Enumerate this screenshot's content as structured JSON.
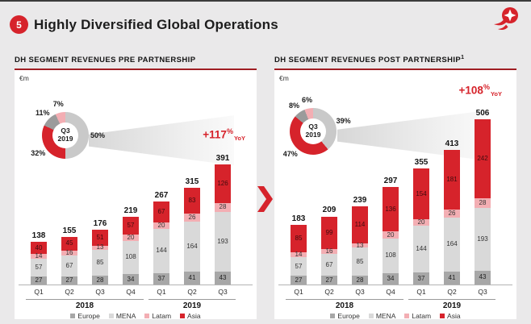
{
  "header": {
    "badge": "5",
    "title": "Highly Diversified Global Operations"
  },
  "colors": {
    "accent": "#d6232b",
    "europe": "#a7a7a7",
    "mena": "#d9d9d9",
    "latam": "#f3aeb3",
    "asia": "#d6232b",
    "donut_mena": "#c9c9c9",
    "donut_europe": "#9b9b9b"
  },
  "legend": [
    {
      "label": "Europe",
      "key": "europe"
    },
    {
      "label": "MENA",
      "key": "mena"
    },
    {
      "label": "Latam",
      "key": "latam"
    },
    {
      "label": "Asia",
      "key": "asia"
    }
  ],
  "chart_data": [
    {
      "type": "bar",
      "stacked": true,
      "title": "DH SEGMENT REVENUES PRE PARTNERSHIP",
      "title_sup": "",
      "unit": "€m",
      "yoy": {
        "value": "+117",
        "pct": "%",
        "suffix": "YoY"
      },
      "categories": [
        "Q1",
        "Q2",
        "Q3",
        "Q4",
        "Q1",
        "Q2",
        "Q3"
      ],
      "year_groups": [
        {
          "label": "2018",
          "cols": 4
        },
        {
          "label": "2019",
          "cols": 3
        }
      ],
      "series": [
        {
          "name": "Europe",
          "values": [
            27,
            27,
            28,
            34,
            37,
            41,
            43
          ]
        },
        {
          "name": "MENA",
          "values": [
            57,
            67,
            85,
            108,
            144,
            164,
            193
          ]
        },
        {
          "name": "Latam",
          "values": [
            14,
            16,
            13,
            20,
            20,
            26,
            28
          ]
        },
        {
          "name": "Asia",
          "values": [
            40,
            45,
            51,
            57,
            67,
            83,
            126
          ]
        }
      ],
      "totals": [
        138,
        155,
        176,
        219,
        267,
        315,
        391
      ],
      "ylim": [
        0,
        400
      ],
      "legend_position": "bottom",
      "donut": {
        "center": [
          "Q3",
          "2019"
        ],
        "slices": [
          {
            "series": "MENA",
            "pct": 50,
            "label": "50%"
          },
          {
            "series": "Asia",
            "pct": 32,
            "label": "32%"
          },
          {
            "series": "Europe",
            "pct": 11,
            "label": "11%"
          },
          {
            "series": "Latam",
            "pct": 7,
            "label": "7%"
          }
        ]
      }
    },
    {
      "type": "bar",
      "stacked": true,
      "title": "DH SEGMENT REVENUES POST PARTNERSHIP",
      "title_sup": "1",
      "unit": "€m",
      "yoy": {
        "value": "+108",
        "pct": "%",
        "suffix": "YoY"
      },
      "categories": [
        "Q1",
        "Q2",
        "Q3",
        "Q4",
        "Q1",
        "Q2",
        "Q3"
      ],
      "year_groups": [
        {
          "label": "2018",
          "cols": 4
        },
        {
          "label": "2019",
          "cols": 3
        }
      ],
      "series": [
        {
          "name": "Europe",
          "values": [
            27,
            27,
            28,
            34,
            37,
            41,
            43
          ]
        },
        {
          "name": "MENA",
          "values": [
            57,
            67,
            85,
            108,
            144,
            164,
            193
          ]
        },
        {
          "name": "Latam",
          "values": [
            14,
            16,
            13,
            20,
            20,
            26,
            28
          ]
        },
        {
          "name": "Asia",
          "values": [
            85,
            99,
            114,
            136,
            154,
            181,
            242
          ]
        }
      ],
      "totals": [
        183,
        209,
        239,
        297,
        355,
        413,
        506
      ],
      "ylim": [
        0,
        520
      ],
      "legend_position": "bottom",
      "donut": {
        "center": [
          "Q3",
          "2019"
        ],
        "slices": [
          {
            "series": "MENA",
            "pct": 39,
            "label": "39%"
          },
          {
            "series": "Asia",
            "pct": 47,
            "label": "47%"
          },
          {
            "series": "Europe",
            "pct": 8,
            "label": "8%"
          },
          {
            "series": "Latam",
            "pct": 6,
            "label": "6%"
          }
        ]
      }
    }
  ]
}
